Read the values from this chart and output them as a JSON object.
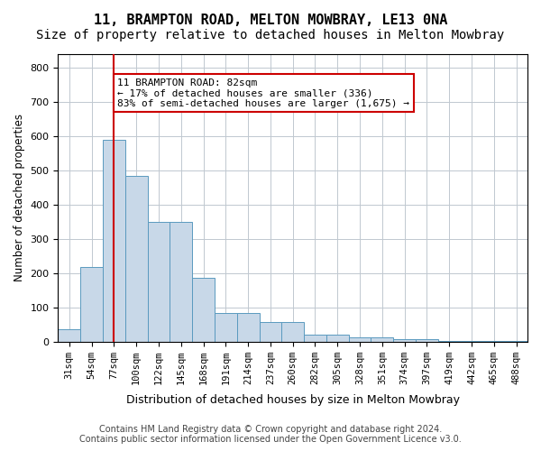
{
  "title": "11, BRAMPTON ROAD, MELTON MOWBRAY, LE13 0NA",
  "subtitle": "Size of property relative to detached houses in Melton Mowbray",
  "xlabel": "Distribution of detached houses by size in Melton Mowbray",
  "ylabel": "Number of detached properties",
  "categories": [
    "31sqm",
    "54sqm",
    "77sqm",
    "100sqm",
    "122sqm",
    "145sqm",
    "168sqm",
    "191sqm",
    "214sqm",
    "237sqm",
    "260sqm",
    "282sqm",
    "305sqm",
    "328sqm",
    "351sqm",
    "374sqm",
    "397sqm",
    "419sqm",
    "442sqm",
    "465sqm",
    "488sqm"
  ],
  "values": [
    35,
    218,
    590,
    485,
    350,
    350,
    185,
    83,
    83,
    57,
    57,
    20,
    20,
    13,
    13,
    7,
    7,
    3,
    3,
    2,
    2
  ],
  "bar_color": "#c8d8e8",
  "bar_edge_color": "#5a9abf",
  "property_size": 82,
  "property_line_x": 2,
  "annotation_text": "11 BRAMPTON ROAD: 82sqm\n← 17% of detached houses are smaller (336)\n83% of semi-detached houses are larger (1,675) →",
  "annotation_box_color": "#ffffff",
  "annotation_box_edge": "#cc0000",
  "red_line_color": "#cc0000",
  "ylim": [
    0,
    840
  ],
  "yticks": [
    0,
    100,
    200,
    300,
    400,
    500,
    600,
    700,
    800
  ],
  "title_fontsize": 11,
  "subtitle_fontsize": 10,
  "footer_line1": "Contains HM Land Registry data © Crown copyright and database right 2024.",
  "footer_line2": "Contains public sector information licensed under the Open Government Licence v3.0.",
  "footer_fontsize": 7,
  "background_color": "#ffffff",
  "grid_color": "#c0c8d0"
}
